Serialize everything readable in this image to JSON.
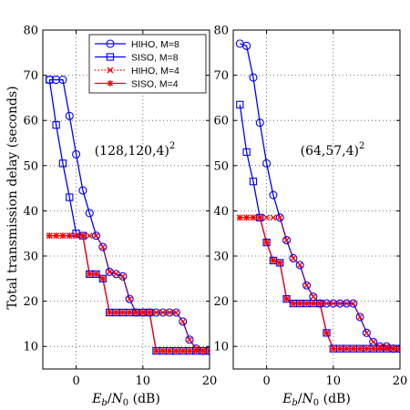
{
  "chart_data": [
    {
      "type": "line",
      "annotation": "(128,120,4)",
      "annotation_sup": "2",
      "xlabel_main": "E",
      "xlabel_sub1": "b",
      "xlabel_mid": "/N",
      "xlabel_sub2": "0",
      "xlabel_unit": " (dB)",
      "ylabel": "Total transmission delay (seconds)",
      "xlim": [
        -5,
        20
      ],
      "ylim": [
        5,
        80
      ],
      "xticks": [
        0,
        10,
        20
      ],
      "yticks": [
        10,
        20,
        30,
        40,
        50,
        60,
        70,
        80
      ],
      "grid": true,
      "legend_position": "top-right",
      "series": [
        {
          "name": "HIHO, M=8",
          "marker": "circle",
          "style": "solid",
          "color": "#0000ff",
          "x": [
            -4,
            -3,
            -2,
            -1,
            0,
            1,
            2,
            3,
            4,
            5,
            6,
            7,
            8,
            9,
            10,
            11,
            12,
            13,
            14,
            15,
            16,
            17,
            18,
            19,
            20
          ],
          "y": [
            69,
            69,
            69,
            61,
            52.5,
            44.5,
            39.5,
            34.5,
            32,
            26.5,
            26,
            25.5,
            20.5,
            17.5,
            17.5,
            17.5,
            17.5,
            17.5,
            17.5,
            17.5,
            15.5,
            11.5,
            9.5,
            9,
            9
          ]
        },
        {
          "name": "SISO, M=8",
          "marker": "square",
          "style": "solid",
          "color": "#0000ff",
          "x": [
            -4,
            -3,
            -2,
            -1,
            0,
            1,
            2,
            3,
            4,
            5,
            6,
            7,
            8,
            9,
            10,
            11,
            12,
            13,
            14,
            15,
            16,
            17,
            18,
            19,
            20
          ],
          "y": [
            69,
            59,
            50.5,
            43,
            35,
            34.5,
            26,
            26,
            25,
            17.5,
            17.5,
            17.5,
            17.5,
            17.5,
            17.5,
            17.5,
            9,
            9,
            9,
            9,
            9,
            9,
            9,
            9,
            9
          ]
        },
        {
          "name": "HIHO, M=4",
          "marker": "x",
          "style": "dotted",
          "color": "#ff0000",
          "x": [
            -4,
            -3,
            -2,
            -1,
            0,
            1,
            2,
            3,
            4,
            5,
            6,
            7,
            8,
            9,
            10,
            11,
            12,
            13,
            14,
            15,
            16,
            17,
            18,
            19,
            20
          ],
          "y": [
            34.5,
            34.5,
            34.5,
            34.5,
            34.5,
            34.5,
            34.5,
            34.5,
            32,
            26.5,
            26,
            25.5,
            20.5,
            17.5,
            17.5,
            17.5,
            17.5,
            17.5,
            17.5,
            17.5,
            15.5,
            11.5,
            9.5,
            9,
            9
          ]
        },
        {
          "name": "SISO, M=4",
          "marker": "star",
          "style": "solid",
          "color": "#ff0000",
          "x": [
            -4,
            -3,
            -2,
            -1,
            0,
            1,
            2,
            3,
            4,
            5,
            6,
            7,
            8,
            9,
            10,
            11,
            12,
            13,
            14,
            15,
            16,
            17,
            18,
            19,
            20
          ],
          "y": [
            34.5,
            34.5,
            34.5,
            34.5,
            34.5,
            34.5,
            26,
            26,
            25,
            17.5,
            17.5,
            17.5,
            17.5,
            17.5,
            17.5,
            17.5,
            9,
            9,
            9,
            9,
            9,
            9,
            9,
            9,
            9
          ]
        }
      ]
    },
    {
      "type": "line",
      "annotation": "(64,57,4)",
      "annotation_sup": "2",
      "xlabel_main": "E",
      "xlabel_sub1": "b",
      "xlabel_mid": "/N",
      "xlabel_sub2": "0",
      "xlabel_unit": " (dB)",
      "ylabel": "",
      "xlim": [
        -5,
        20
      ],
      "ylim": [
        5,
        80
      ],
      "xticks": [
        0,
        10,
        20
      ],
      "yticks": [
        10,
        20,
        30,
        40,
        50,
        60,
        70,
        80
      ],
      "grid": true,
      "series": [
        {
          "name": "HIHO, M=8",
          "marker": "circle",
          "style": "solid",
          "color": "#0000ff",
          "x": [
            -4,
            -3,
            -2,
            -1,
            0,
            1,
            2,
            3,
            4,
            5,
            6,
            7,
            8,
            9,
            10,
            11,
            12,
            13,
            14,
            15,
            16,
            17,
            18,
            19,
            20
          ],
          "y": [
            77,
            76.5,
            69.5,
            59.5,
            50.5,
            43.5,
            38.5,
            33.5,
            29.5,
            28,
            23.5,
            21,
            19.5,
            19.5,
            19.5,
            19.5,
            19.5,
            19.5,
            16.5,
            13,
            11,
            10,
            10,
            9.5,
            9.5
          ]
        },
        {
          "name": "SISO, M=8",
          "marker": "square",
          "style": "solid",
          "color": "#0000ff",
          "x": [
            -4,
            -3,
            -2,
            -1,
            0,
            1,
            2,
            3,
            4,
            5,
            6,
            7,
            8,
            9,
            10,
            11,
            12,
            13,
            14,
            15,
            16,
            17,
            18,
            19,
            20
          ],
          "y": [
            63.5,
            53,
            46.5,
            38.5,
            33,
            29,
            28.5,
            20.5,
            19.5,
            19.5,
            19.5,
            19.5,
            19.5,
            13,
            9.5,
            9.5,
            9.5,
            9.5,
            9.5,
            9.5,
            9.5,
            9.5,
            9.5,
            9.5,
            9.5
          ]
        },
        {
          "name": "HIHO, M=4",
          "marker": "x",
          "style": "dotted",
          "color": "#ff0000",
          "x": [
            -4,
            -3,
            -2,
            -1,
            0,
            1,
            2,
            3,
            4,
            5,
            6,
            7,
            8,
            9,
            10,
            11,
            12,
            13,
            14,
            15,
            16,
            17,
            18,
            19,
            20
          ],
          "y": [
            38.5,
            38.5,
            38.5,
            38.5,
            38.5,
            38.5,
            38.5,
            33.5,
            29.5,
            28,
            23.5,
            21,
            19.5,
            19.5,
            19.5,
            19.5,
            19.5,
            19.5,
            16.5,
            13,
            11,
            10,
            10,
            9.5,
            9.5
          ]
        },
        {
          "name": "SISO, M=4",
          "marker": "star",
          "style": "solid",
          "color": "#ff0000",
          "x": [
            -4,
            -3,
            -2,
            -1,
            0,
            1,
            2,
            3,
            4,
            5,
            6,
            7,
            8,
            9,
            10,
            11,
            12,
            13,
            14,
            15,
            16,
            17,
            18,
            19,
            20
          ],
          "y": [
            38.5,
            38.5,
            38.5,
            38.5,
            33,
            29,
            28.5,
            20.5,
            19.5,
            19.5,
            19.5,
            19.5,
            19.5,
            13,
            9.5,
            9.5,
            9.5,
            9.5,
            9.5,
            9.5,
            9.5,
            9.5,
            9.5,
            9.5,
            9.5
          ]
        }
      ]
    }
  ]
}
